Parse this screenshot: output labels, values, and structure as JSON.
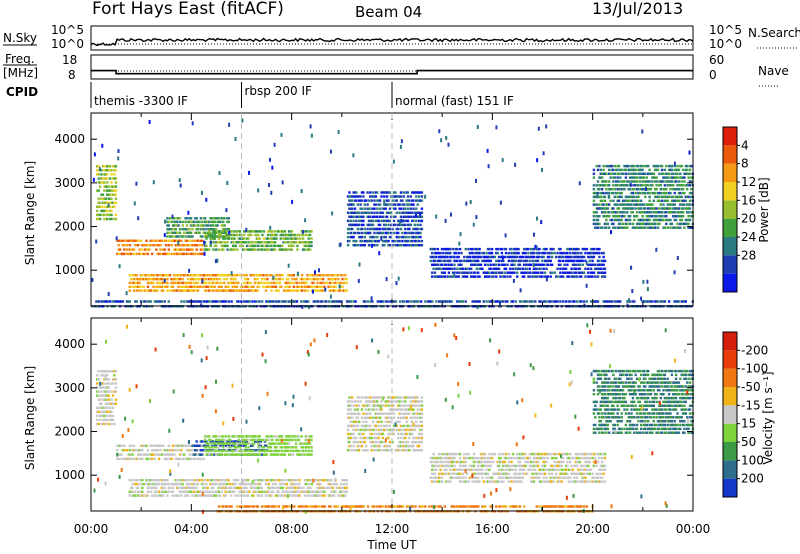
{
  "header": {
    "station": "Fort Hays East (fitACF)",
    "beam": "Beam 04",
    "date": "13/Jul/2013"
  },
  "top_panels": {
    "nsky_label": "N.Sky",
    "nsky_ticks": [
      "10^5",
      "10^0"
    ],
    "nsearch_label": "N.Search",
    "nsearch_ticks": [
      "10^5",
      "10^0"
    ],
    "freq_label_1": "Freq.",
    "freq_label_2": "[MHz]",
    "freq_ticks": [
      "18",
      "8"
    ],
    "nave_label": "Nave",
    "nave_ticks": [
      "60",
      "0"
    ],
    "cpid_label": "CPID",
    "cpid_segments": [
      {
        "start": 0,
        "end": 6,
        "label": "themis -3300 IF"
      },
      {
        "start": 6,
        "end": 12,
        "label": "rbsp 200 IF"
      },
      {
        "start": 12,
        "end": 24,
        "label": "normal (fast) 151 IF"
      }
    ],
    "freq_steps": [
      {
        "start": 0,
        "end": 1,
        "value": 11.5
      },
      {
        "start": 1,
        "end": 13,
        "value": 10.2
      },
      {
        "start": 13,
        "end": 24,
        "value": 11.5
      }
    ]
  },
  "chart_data": [
    {
      "type": "heatmap",
      "parameter": "power",
      "ylabel": "Slant Range [km]",
      "yticks": [
        1000,
        2000,
        3000,
        4000
      ],
      "ylim": [
        180,
        4600
      ],
      "xlim": [
        0,
        24
      ],
      "colorbar_label": "Power [dB]",
      "colorbar_ticks": [
        4,
        8,
        12,
        16,
        20,
        24,
        28
      ],
      "colorbar_range": [
        0,
        32
      ],
      "colorbar_colors": [
        "#0a18e8",
        "#1e3cb4",
        "#2a7a82",
        "#3fa03c",
        "#96be2e",
        "#f0d020",
        "#f59a14",
        "#eb5a0c",
        "#dc1e0a"
      ],
      "bands": [
        {
          "start": 0.2,
          "end": 1.0,
          "range": [
            2200,
            3500
          ],
          "power": 16
        },
        {
          "start": 1.0,
          "end": 4.5,
          "range": [
            1400,
            1800
          ],
          "power": 24
        },
        {
          "start": 3.0,
          "end": 5.5,
          "range": [
            1800,
            2300
          ],
          "power": 12
        },
        {
          "start": 4.5,
          "end": 8.8,
          "range": [
            1500,
            2000
          ],
          "power": 14
        },
        {
          "start": 1.5,
          "end": 10.2,
          "range": [
            560,
            1000
          ],
          "power": 22
        },
        {
          "start": 10.2,
          "end": 13.2,
          "range": [
            1600,
            2900
          ],
          "power": 6
        },
        {
          "start": 13.5,
          "end": 20.5,
          "range": [
            880,
            1600
          ],
          "power": 4
        },
        {
          "start": 20.0,
          "end": 24.0,
          "range": [
            2000,
            3500
          ],
          "power": 10
        },
        {
          "start": 0.0,
          "end": 24.0,
          "range": [
            200,
            420
          ],
          "power": 6
        }
      ]
    },
    {
      "type": "heatmap",
      "parameter": "velocity",
      "ylabel": "Slant Range [km]",
      "yticks": [
        1000,
        2000,
        3000,
        4000
      ],
      "ylim": [
        180,
        4600
      ],
      "xlim": [
        0,
        24
      ],
      "xlabel": "Time UT",
      "xticks": [
        "00:00",
        "04:00",
        "08:00",
        "12:00",
        "16:00",
        "20:00",
        "00:00"
      ],
      "colorbar_label": "Velocity [m s⁻¹]",
      "colorbar_ticks": [
        200,
        100,
        50,
        15,
        -15,
        -50,
        -100,
        -200
      ],
      "colorbar_colors": [
        "#1438c8",
        "#2e6e8c",
        "#3c9a46",
        "#7ed23c",
        "#c8c8c8",
        "#f0b418",
        "#f07814",
        "#e63c0a",
        "#d21e0a"
      ],
      "bands": [
        {
          "start": 0.2,
          "end": 1.0,
          "range": [
            2200,
            3500
          ],
          "velocity": 0
        },
        {
          "start": 1.0,
          "end": 4.5,
          "range": [
            1400,
            1800
          ],
          "velocity": 0
        },
        {
          "start": 4.0,
          "end": 7.0,
          "range": [
            1500,
            1900
          ],
          "velocity": 200
        },
        {
          "start": 4.5,
          "end": 8.8,
          "range": [
            1500,
            2000
          ],
          "velocity": 30
        },
        {
          "start": 1.5,
          "end": 10.2,
          "range": [
            560,
            1000
          ],
          "velocity": 0
        },
        {
          "start": 10.2,
          "end": 13.2,
          "range": [
            1600,
            2900
          ],
          "velocity": 0
        },
        {
          "start": 13.5,
          "end": 20.5,
          "range": [
            880,
            1600
          ],
          "velocity": 0
        },
        {
          "start": 20.0,
          "end": 24.0,
          "range": [
            2000,
            3500
          ],
          "velocity": 100
        },
        {
          "start": 5.0,
          "end": 20.0,
          "range": [
            200,
            420
          ],
          "velocity": -60
        }
      ]
    }
  ]
}
